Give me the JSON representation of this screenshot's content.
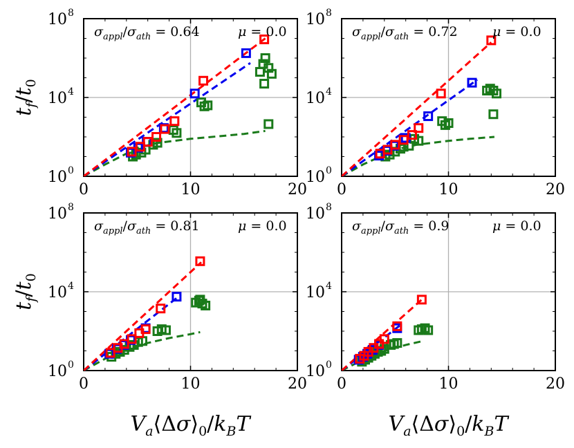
{
  "chart_data": {
    "type": "scatter",
    "xlabel": "V_a⟨Δσ⟩_0/k_B T",
    "ylabel": "t_f/t_0",
    "xlim": [
      0,
      20
    ],
    "ylim_log10": [
      0,
      8
    ],
    "x_ticks": [
      "0",
      "10",
      "20"
    ],
    "y_ticks": [
      {
        "base": "10",
        "exp": "0"
      },
      {
        "base": "10",
        "exp": "4"
      },
      {
        "base": "10",
        "exp": "8"
      }
    ],
    "grid_lines": {
      "x": [
        10
      ],
      "y_log10": [
        4
      ]
    },
    "colors": {
      "red": "#ff0000",
      "blue": "#0000ee",
      "green": "#1a7a1a"
    },
    "panels": [
      {
        "sigma_label": "σ_appl/σ_ath = 0.64",
        "sigma_text": "0.64",
        "mu_text": "0.0",
        "series": [
          {
            "name": "red",
            "marker": "square",
            "x": [
              4.5,
              5.3,
              6.0,
              6.8,
              7.6,
              8.5,
              11.2,
              16.9
            ],
            "log10_y": [
              1.25,
              1.5,
              1.75,
              2.0,
              2.4,
              2.8,
              4.85,
              6.95
            ]
          },
          {
            "name": "blue",
            "marker": "square",
            "x": [
              4.4,
              5.1,
              5.9,
              7.5,
              10.4,
              15.2
            ],
            "log10_y": [
              1.2,
              1.45,
              1.75,
              2.45,
              4.2,
              6.25
            ]
          },
          {
            "name": "green",
            "marker": "square",
            "x": [
              4.6,
              4.9,
              5.4,
              5.8,
              6.5,
              6.9,
              8.4,
              8.7,
              11.0,
              11.3,
              11.6,
              16.5,
              16.8,
              17.0,
              17.3,
              17.6,
              16.9,
              17.3
            ],
            "log10_y": [
              1.0,
              1.1,
              1.2,
              1.35,
              1.6,
              1.7,
              2.35,
              2.2,
              3.75,
              3.55,
              3.6,
              5.3,
              5.7,
              6.0,
              5.5,
              5.2,
              4.7,
              2.65
            ]
          },
          {
            "name": "red-dash",
            "style": "dashed",
            "x": [
              0,
              17
            ],
            "log10_y": [
              0,
              7.0
            ]
          },
          {
            "name": "blue-dash",
            "style": "dashed",
            "x": [
              0,
              15.6
            ],
            "log10_y": [
              0,
              5.75
            ]
          },
          {
            "name": "green-dash",
            "style": "dashed",
            "x": [
              0,
              2,
              4,
              5,
              7,
              10,
              13,
              15,
              17
            ],
            "log10_y": [
              0,
              0.6,
              1.15,
              1.45,
              1.7,
              1.9,
              2.05,
              2.15,
              2.3
            ]
          }
        ]
      },
      {
        "sigma_label": "σ_appl/σ_ath = 0.72",
        "sigma_text": "0.72",
        "mu_text": "0.0",
        "series": [
          {
            "name": "red",
            "marker": "square",
            "x": [
              3.6,
              4.3,
              5.0,
              5.8,
              6.6,
              7.2,
              9.3,
              14.0
            ],
            "log10_y": [
              1.15,
              1.35,
              1.6,
              1.85,
              2.1,
              2.45,
              4.2,
              6.9
            ]
          },
          {
            "name": "blue",
            "marker": "square",
            "x": [
              3.5,
              4.2,
              4.9,
              6.0,
              8.1,
              12.2
            ],
            "log10_y": [
              1.05,
              1.3,
              1.55,
              1.95,
              3.05,
              4.75
            ]
          },
          {
            "name": "green",
            "marker": "square",
            "x": [
              4.1,
              4.5,
              5.0,
              5.5,
              5.8,
              6.3,
              6.8,
              7.2,
              9.4,
              9.7,
              10.0,
              13.6,
              13.9,
              14.2,
              14.5,
              14.2
            ],
            "log10_y": [
              1.0,
              1.1,
              1.25,
              1.4,
              1.5,
              1.55,
              1.9,
              1.8,
              2.8,
              2.6,
              2.7,
              4.35,
              4.45,
              4.35,
              4.2,
              3.15
            ]
          },
          {
            "name": "red-dash",
            "style": "dashed",
            "x": [
              0,
              14
            ],
            "log10_y": [
              0,
              6.8
            ]
          },
          {
            "name": "blue-dash",
            "style": "dashed",
            "x": [
              0,
              12.7
            ],
            "log10_y": [
              0,
              4.9
            ]
          },
          {
            "name": "green-dash",
            "style": "dashed",
            "x": [
              0,
              2,
              4,
              5,
              7,
              10,
              12,
              14.3
            ],
            "log10_y": [
              0,
              0.6,
              1.1,
              1.35,
              1.6,
              1.8,
              1.9,
              2.0
            ]
          }
        ]
      },
      {
        "sigma_label": "σ_appl/σ_ath = 0.81",
        "sigma_text": "0.81",
        "mu_text": "0.0",
        "series": [
          {
            "name": "red",
            "marker": "square",
            "x": [
              2.5,
              3.2,
              3.8,
              4.5,
              5.2,
              5.8,
              7.2,
              10.9
            ],
            "log10_y": [
              0.9,
              1.15,
              1.35,
              1.6,
              1.9,
              2.1,
              3.15,
              5.55
            ]
          },
          {
            "name": "blue",
            "marker": "square",
            "x": [
              2.4,
              3.1,
              3.8,
              4.4,
              5.8,
              8.7
            ],
            "log10_y": [
              0.85,
              1.1,
              1.3,
              1.55,
              2.15,
              3.75
            ]
          },
          {
            "name": "green",
            "marker": "square",
            "x": [
              2.6,
              3.0,
              3.4,
              3.8,
              4.3,
              4.7,
              5.1,
              5.5,
              6.9,
              7.3,
              7.7,
              10.5,
              10.8,
              11.1,
              11.4,
              10.9
            ],
            "log10_y": [
              0.7,
              0.85,
              0.95,
              1.05,
              1.2,
              1.3,
              1.45,
              1.5,
              2.0,
              2.1,
              2.05,
              3.45,
              3.55,
              3.4,
              3.3,
              3.6
            ]
          },
          {
            "name": "red-dash",
            "style": "dashed",
            "x": [
              0,
              11
            ],
            "log10_y": [
              0,
              5.5
            ]
          },
          {
            "name": "blue-dash",
            "style": "dashed",
            "x": [
              0,
              9.1
            ],
            "log10_y": [
              0,
              3.85
            ]
          },
          {
            "name": "green-dash",
            "style": "dashed",
            "x": [
              0,
              2,
              4,
              6,
              8,
              10,
              10.9
            ],
            "log10_y": [
              0,
              0.6,
              1.05,
              1.4,
              1.65,
              1.85,
              1.95
            ]
          }
        ]
      },
      {
        "sigma_label": "σ_appl/σ_ath = 0.9",
        "sigma_text": "0.9",
        "mu_text": "0.0",
        "series": [
          {
            "name": "red",
            "marker": "square",
            "x": [
              1.7,
              2.1,
              2.5,
              3.0,
              3.5,
              4.0,
              5.2,
              7.5
            ],
            "log10_y": [
              0.6,
              0.75,
              0.95,
              1.15,
              1.35,
              1.6,
              2.25,
              3.6
            ]
          },
          {
            "name": "blue",
            "marker": "square",
            "x": [
              1.6,
              2.0,
              2.4,
              2.9,
              3.5,
              5.2
            ],
            "log10_y": [
              0.55,
              0.7,
              0.85,
              1.05,
              1.3,
              2.15
            ]
          },
          {
            "name": "green",
            "marker": "square",
            "x": [
              1.9,
              2.2,
              2.5,
              2.8,
              3.1,
              3.4,
              3.7,
              4.0,
              4.6,
              4.9,
              5.2,
              7.2,
              7.5,
              7.8,
              8.1
            ],
            "log10_y": [
              0.45,
              0.55,
              0.65,
              0.75,
              0.85,
              0.95,
              1.0,
              1.1,
              1.3,
              1.35,
              1.4,
              2.05,
              2.1,
              2.15,
              2.05
            ]
          },
          {
            "name": "red-dash",
            "style": "dashed",
            "x": [
              0,
              7.6
            ],
            "log10_y": [
              0,
              3.65
            ]
          },
          {
            "name": "blue-dash",
            "style": "dashed",
            "x": [
              0,
              5.6
            ],
            "log10_y": [
              0,
              2.35
            ]
          },
          {
            "name": "green-dash",
            "style": "dashed",
            "x": [
              0,
              2,
              4,
              6,
              7.6
            ],
            "log10_y": [
              0,
              0.55,
              1.0,
              1.3,
              1.5
            ]
          }
        ]
      }
    ]
  }
}
